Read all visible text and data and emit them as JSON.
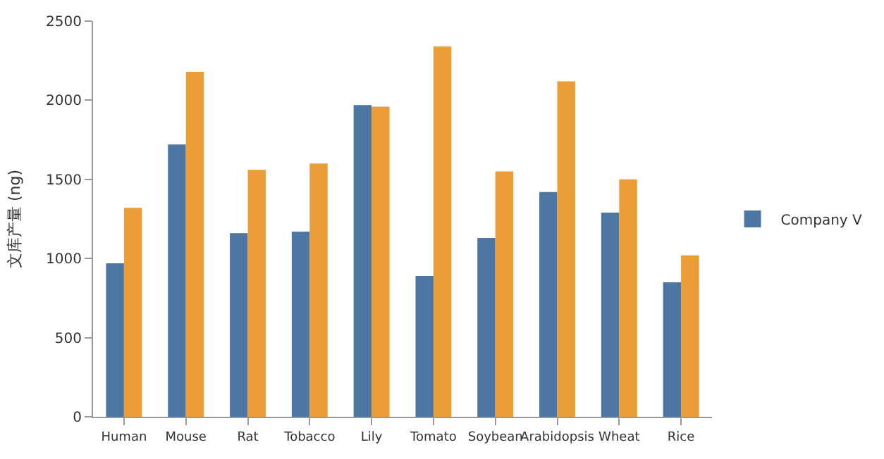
{
  "chart_data": {
    "type": "bar",
    "ylabel": "文库产量 (ng)",
    "categories": [
      "Human",
      "Mouse",
      "Rat",
      "Tobacco",
      "Lily",
      "Tomato",
      "Soybean",
      "Arabidopsis",
      "Wheat",
      "Rice"
    ],
    "series": [
      {
        "name": "Company V",
        "color": "#4e76a2",
        "values": [
          970,
          1720,
          1160,
          1170,
          1970,
          890,
          1130,
          1420,
          1290,
          850
        ]
      },
      {
        "color": "#eb9e38",
        "values": [
          1320,
          2180,
          1560,
          1600,
          1960,
          2340,
          1550,
          2120,
          1500,
          1020
        ]
      }
    ],
    "ylim": [
      0,
      2500
    ],
    "yticks": [
      0,
      500,
      1000,
      1500,
      2000,
      2500
    ],
    "legend": "right"
  }
}
